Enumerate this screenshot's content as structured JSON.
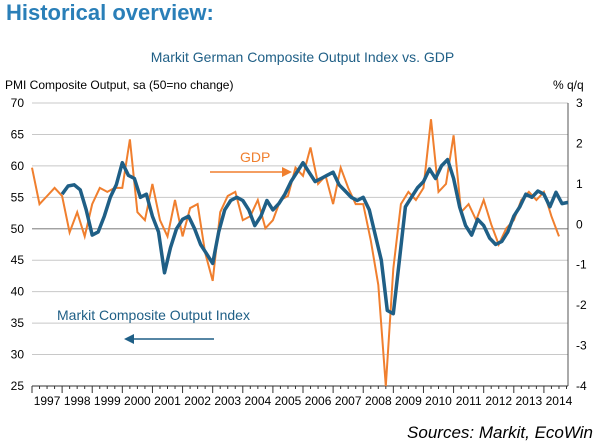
{
  "header": {
    "heading": "Historical overview:"
  },
  "footer": {
    "source": "Sources: Markit, EcoWin"
  },
  "colors": {
    "pmi": "#1f5f86",
    "gdp": "#f07f2e",
    "heading": "#2a7fb8",
    "grid": "#c8c8c8"
  },
  "chart_data": {
    "type": "line",
    "title": "Markit German Composite Output Index vs. GDP",
    "ylabel_left": "PMI Composite Output, sa (50=no change)",
    "ylabel_right": "% q/q",
    "y_left_range": [
      25,
      70
    ],
    "y_left_ticks": [
      "25",
      "30",
      "35",
      "40",
      "45",
      "50",
      "55",
      "60",
      "65",
      "70"
    ],
    "y_right_range": [
      -4,
      3
    ],
    "y_right_ticks": [
      "-4",
      "-3",
      "-2",
      "-1",
      "0",
      "1",
      "2",
      "3"
    ],
    "x_range": [
      1997,
      2014.8
    ],
    "x_ticks": [
      "1997",
      "1998",
      "1999",
      "2000",
      "2001",
      "2002",
      "2003",
      "2004",
      "2005",
      "2006",
      "2007",
      "2008",
      "2009",
      "2010",
      "2011",
      "2012",
      "2013",
      "2014"
    ],
    "annotations": {
      "gdp_label": "GDP",
      "pmi_label": "Markit Composite Output Index"
    },
    "series": [
      {
        "name": "Markit Composite Output Index",
        "axis": "left",
        "x": [
          1998.0,
          1998.2,
          1998.4,
          1998.6,
          1998.8,
          1999.0,
          1999.2,
          1999.4,
          1999.6,
          1999.8,
          2000.0,
          2000.2,
          2000.4,
          2000.6,
          2000.8,
          2001.0,
          2001.2,
          2001.4,
          2001.6,
          2001.8,
          2002.0,
          2002.2,
          2002.4,
          2002.6,
          2002.8,
          2003.0,
          2003.2,
          2003.4,
          2003.6,
          2003.8,
          2004.0,
          2004.2,
          2004.4,
          2004.6,
          2004.8,
          2005.0,
          2005.2,
          2005.4,
          2005.6,
          2005.8,
          2006.0,
          2006.2,
          2006.4,
          2006.6,
          2006.8,
          2007.0,
          2007.2,
          2007.4,
          2007.6,
          2007.8,
          2008.0,
          2008.2,
          2008.4,
          2008.6,
          2008.8,
          2009.0,
          2009.2,
          2009.4,
          2009.6,
          2009.8,
          2010.0,
          2010.2,
          2010.4,
          2010.6,
          2010.8,
          2011.0,
          2011.2,
          2011.4,
          2011.6,
          2011.8,
          2012.0,
          2012.2,
          2012.4,
          2012.6,
          2012.8,
          2013.0,
          2013.2,
          2013.4,
          2013.6,
          2013.8,
          2014.0,
          2014.2,
          2014.4,
          2014.6,
          2014.8
        ],
        "values": [
          55.5,
          56.8,
          57.0,
          56.2,
          53.0,
          49.0,
          49.5,
          52.0,
          55.0,
          57.0,
          60.5,
          58.5,
          58.0,
          55.0,
          55.5,
          52.0,
          49.5,
          43.0,
          47.0,
          50.0,
          51.5,
          52.0,
          50.0,
          47.5,
          46.0,
          44.5,
          49.5,
          53.0,
          54.5,
          55.0,
          54.5,
          53.0,
          50.5,
          52.0,
          54.5,
          53.0,
          54.0,
          55.5,
          57.5,
          59.0,
          60.5,
          59.0,
          57.5,
          58.0,
          58.5,
          59.0,
          57.0,
          56.0,
          55.0,
          54.5,
          55.0,
          53.0,
          49.0,
          45.0,
          37.0,
          36.5,
          45.0,
          53.5,
          55.0,
          56.5,
          57.5,
          59.5,
          58.0,
          60.0,
          61.0,
          58.0,
          53.5,
          50.5,
          49.0,
          51.5,
          50.5,
          48.5,
          47.5,
          48.0,
          49.5,
          52.0,
          53.5,
          55.5,
          55.0,
          56.0,
          55.5,
          53.5,
          55.8,
          54.0,
          54.2
        ]
      },
      {
        "name": "GDP",
        "axis": "right",
        "x": [
          1997.0,
          1997.25,
          1997.5,
          1997.75,
          1998.0,
          1998.25,
          1998.5,
          1998.75,
          1999.0,
          1999.25,
          1999.5,
          1999.75,
          2000.0,
          2000.25,
          2000.5,
          2000.75,
          2001.0,
          2001.25,
          2001.5,
          2001.75,
          2002.0,
          2002.25,
          2002.5,
          2002.75,
          2003.0,
          2003.25,
          2003.5,
          2003.75,
          2004.0,
          2004.25,
          2004.5,
          2004.75,
          2005.0,
          2005.25,
          2005.5,
          2005.75,
          2006.0,
          2006.25,
          2006.5,
          2006.75,
          2007.0,
          2007.25,
          2007.5,
          2007.75,
          2008.0,
          2008.25,
          2008.5,
          2008.75,
          2009.0,
          2009.25,
          2009.5,
          2009.75,
          2010.0,
          2010.25,
          2010.5,
          2010.75,
          2011.0,
          2011.25,
          2011.5,
          2011.75,
          2012.0,
          2012.25,
          2012.5,
          2012.75,
          2013.0,
          2013.25,
          2013.5,
          2013.75,
          2014.0,
          2014.25,
          2014.5
        ],
        "values": [
          1.4,
          0.5,
          0.7,
          0.9,
          0.7,
          -0.2,
          0.3,
          -0.3,
          0.5,
          0.9,
          0.8,
          0.9,
          0.9,
          2.1,
          0.3,
          0.1,
          1.0,
          0.1,
          -0.3,
          0.6,
          -0.3,
          0.4,
          0.5,
          -0.7,
          -1.4,
          0.3,
          0.7,
          0.8,
          0.1,
          0.2,
          0.6,
          -0.1,
          0.1,
          0.6,
          0.7,
          1.4,
          1.2,
          1.9,
          1.0,
          1.2,
          0.5,
          1.4,
          0.9,
          0.5,
          0.5,
          -0.4,
          -1.5,
          -4.0,
          -1.1,
          0.5,
          0.8,
          0.6,
          0.9,
          2.6,
          0.8,
          1.0,
          2.2,
          0.3,
          0.5,
          0.1,
          0.6,
          0.0,
          -0.5,
          -0.1,
          0.1,
          0.6,
          0.8,
          0.6,
          0.8,
          0.2,
          -0.3
        ]
      }
    ]
  }
}
